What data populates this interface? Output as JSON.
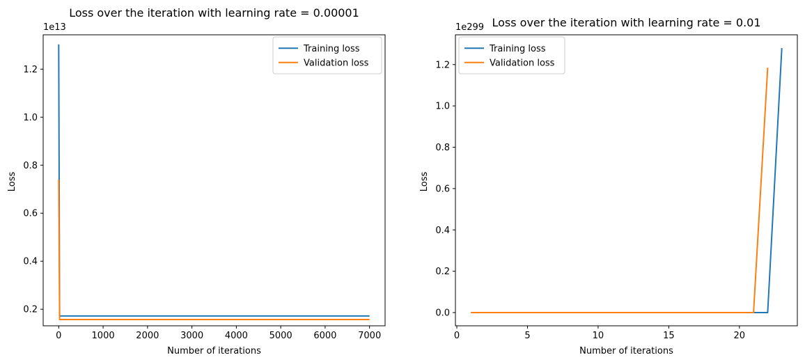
{
  "chart_data": [
    {
      "type": "line",
      "title": "Loss over the iteration with learning rate = 0.00001",
      "xlabel": "Number of iterations",
      "ylabel": "Loss",
      "offset_label": "1e13",
      "xlim": [
        -350,
        7350
      ],
      "ylim": [
        0.131,
        1.343
      ],
      "x_ticks": [
        0,
        1000,
        2000,
        3000,
        4000,
        5000,
        6000,
        7000
      ],
      "x_tick_labels": [
        "0",
        "1000",
        "2000",
        "3000",
        "4000",
        "5000",
        "6000",
        "7000"
      ],
      "y_ticks": [
        0.2,
        0.4,
        0.6,
        0.8,
        1.0,
        1.2
      ],
      "y_tick_labels": [
        "0.2",
        "0.4",
        "0.6",
        "0.8",
        "1.0",
        "1.2"
      ],
      "legend_position": "upper right",
      "grid": false,
      "series": [
        {
          "name": "Training loss",
          "color": "#1f77b4",
          "x": [
            0,
            20,
            7000
          ],
          "y": [
            1.303,
            0.172,
            0.172
          ]
        },
        {
          "name": "Validation loss",
          "color": "#ff7f0e",
          "x": [
            0,
            20,
            7000
          ],
          "y": [
            0.74,
            0.157,
            0.157
          ]
        }
      ]
    },
    {
      "type": "line",
      "title": "Loss over the iteration with learning rate = 0.01",
      "xlabel": "Number of iterations",
      "ylabel": "Loss",
      "offset_label": "1e299",
      "xlim": [
        -0.1,
        24.1
      ],
      "ylim": [
        -0.064,
        1.344
      ],
      "x_ticks": [
        0,
        5,
        10,
        15,
        20
      ],
      "x_tick_labels": [
        "0",
        "5",
        "10",
        "15",
        "20"
      ],
      "y_ticks": [
        0.0,
        0.2,
        0.4,
        0.6,
        0.8,
        1.0,
        1.2
      ],
      "y_tick_labels": [
        "0.0",
        "0.2",
        "0.4",
        "0.6",
        "0.8",
        "1.0",
        "1.2"
      ],
      "legend_position": "upper left",
      "grid": false,
      "series": [
        {
          "name": "Training loss",
          "color": "#1f77b4",
          "x": [
            1,
            2,
            3,
            4,
            5,
            6,
            7,
            8,
            9,
            10,
            11,
            12,
            13,
            14,
            15,
            16,
            17,
            18,
            19,
            20,
            21,
            22,
            23
          ],
          "y": [
            0,
            0,
            0,
            0,
            0,
            0,
            0,
            0,
            0,
            0,
            0,
            0,
            0,
            0,
            0,
            0,
            0,
            0,
            0,
            0,
            0,
            0,
            1.28
          ]
        },
        {
          "name": "Validation loss",
          "color": "#ff7f0e",
          "x": [
            1,
            2,
            3,
            4,
            5,
            6,
            7,
            8,
            9,
            10,
            11,
            12,
            13,
            14,
            15,
            16,
            17,
            18,
            19,
            20,
            21,
            22
          ],
          "y": [
            0,
            0,
            0,
            0,
            0,
            0,
            0,
            0,
            0,
            0,
            0,
            0,
            0,
            0,
            0,
            0,
            0,
            0,
            0,
            0,
            0,
            1.185
          ]
        }
      ]
    }
  ]
}
